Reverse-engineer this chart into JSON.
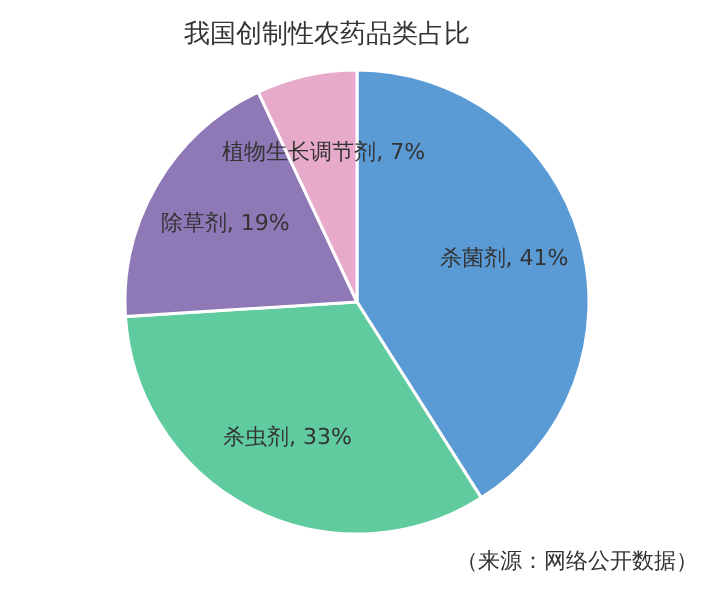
{
  "chart_data": {
    "type": "pie",
    "title": "我国创制性农药品类占比",
    "categories": [
      "杀菌剂",
      "杀虫剂",
      "除草剂",
      "植物生长调节剂"
    ],
    "values": [
      41,
      33,
      19,
      7
    ],
    "value_labels": [
      "41%",
      "33%",
      "19%",
      "7%"
    ],
    "colors": [
      "#5b9bd5",
      "#5fcb9f",
      "#8f78b6",
      "#e7aaca"
    ],
    "annotations": [
      "（来源：网络公开数据）"
    ]
  }
}
